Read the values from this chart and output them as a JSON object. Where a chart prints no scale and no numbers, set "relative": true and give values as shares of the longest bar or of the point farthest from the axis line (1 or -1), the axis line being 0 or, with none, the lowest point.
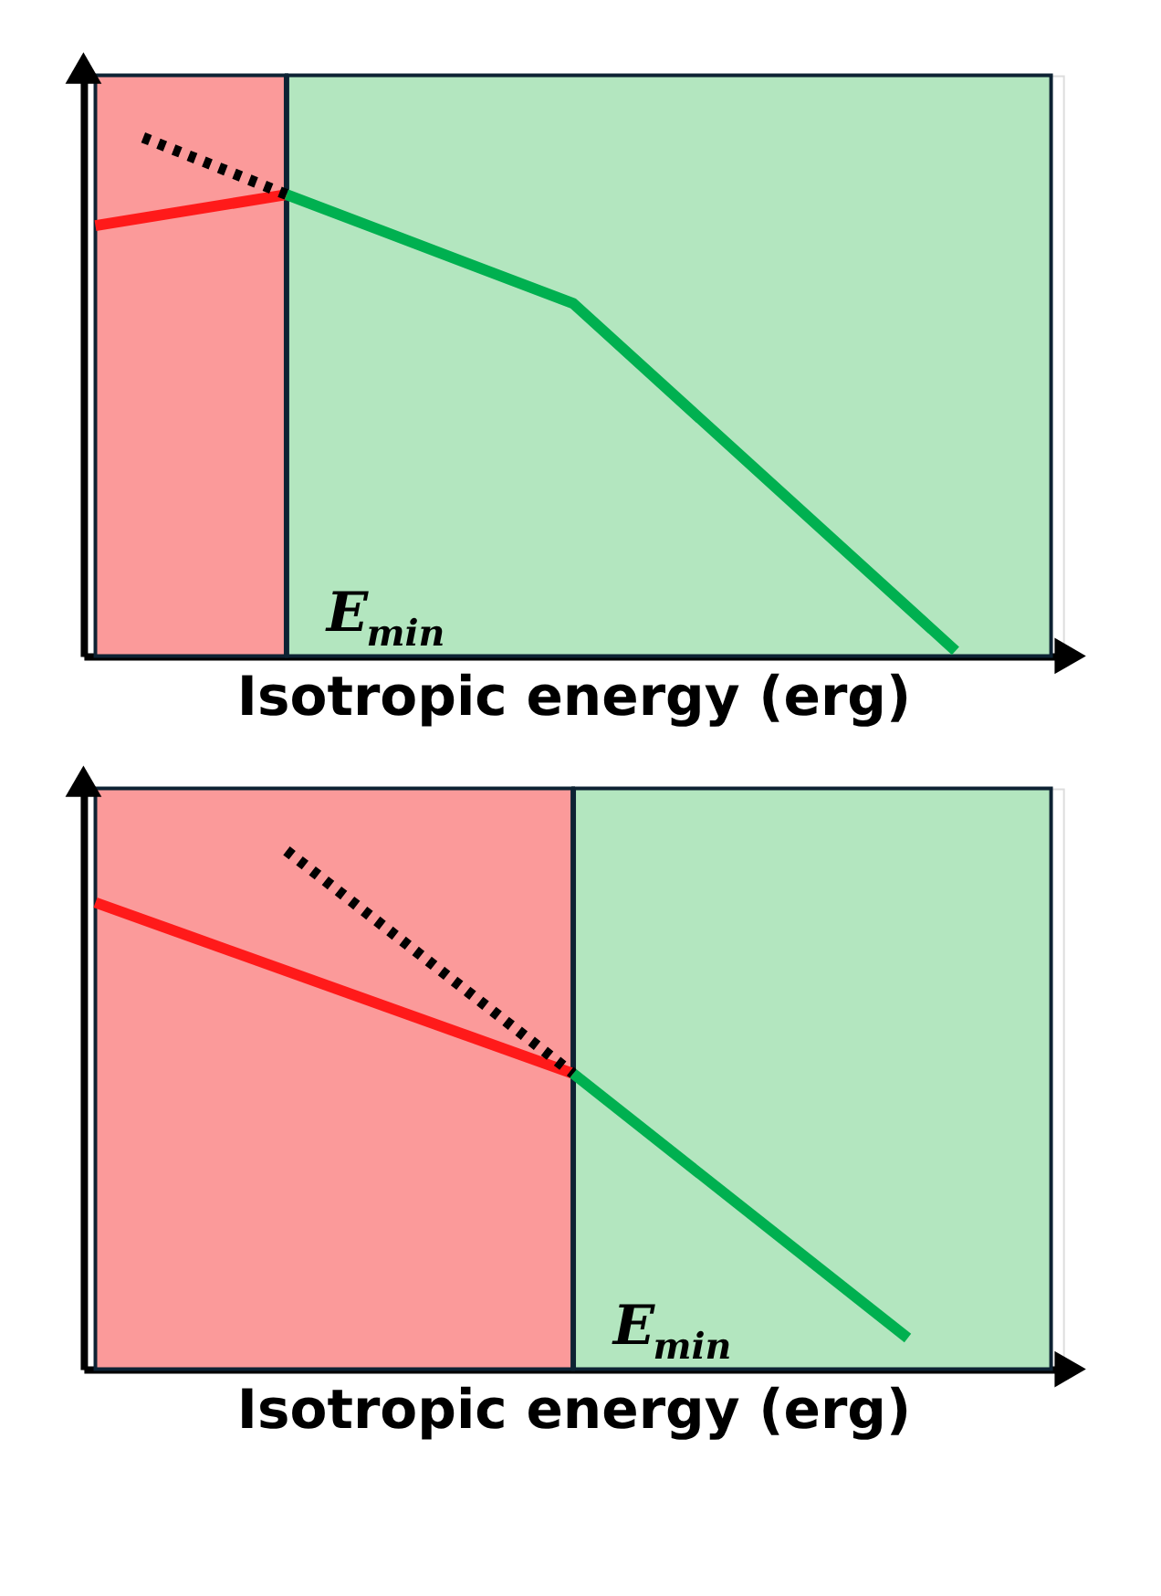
{
  "chart_data": [
    {
      "type": "line",
      "relative": true,
      "xlabel": "Isotropic energy (erg)",
      "marker": "none",
      "annotations": [
        "E$_{min}$"
      ],
      "categories": [
        null,
        null,
        null,
        null,
        null,
        null,
        null,
        null,
        null,
        null,
        null,
        null,
        null,
        null,
        null,
        null,
        null,
        null,
        null,
        null,
        null,
        null,
        null,
        null,
        null,
        null,
        null,
        null,
        null,
        null,
        null,
        null,
        null,
        null,
        null,
        null,
        null,
        null,
        null,
        null,
        null
      ],
      "series": [
        {
          "color": "#ff1a1a",
          "line_style": "solid",
          "values": [
            0.83,
            null,
            null,
            null,
            null,
            null,
            null,
            null,
            0.89,
            null,
            null,
            null,
            null,
            null,
            null,
            null,
            null,
            null,
            null,
            null,
            null,
            null,
            null,
            null,
            null,
            null,
            null,
            null,
            null,
            null,
            null,
            null,
            null,
            null,
            null,
            null,
            null,
            null,
            null,
            null,
            null
          ]
        },
        {
          "color": "#000000",
          "line_style": "dotted",
          "values": [
            null,
            null,
            1.0,
            null,
            null,
            null,
            null,
            null,
            0.89,
            null,
            null,
            null,
            null,
            null,
            null,
            null,
            null,
            null,
            null,
            null,
            null,
            null,
            null,
            null,
            null,
            null,
            null,
            null,
            null,
            null,
            null,
            null,
            null,
            null,
            null,
            null,
            null,
            null,
            null,
            null,
            null
          ]
        },
        {
          "color": "#00b050",
          "line_style": "solid",
          "values": [
            null,
            null,
            null,
            null,
            null,
            null,
            null,
            null,
            0.89,
            null,
            null,
            null,
            null,
            null,
            null,
            null,
            null,
            null,
            null,
            null,
            0.68,
            null,
            null,
            null,
            null,
            null,
            null,
            null,
            null,
            null,
            null,
            null,
            null,
            null,
            null,
            null,
            0.01,
            null,
            null,
            null,
            null
          ]
        }
      ]
    },
    {
      "type": "line",
      "relative": true,
      "xlabel": "Isotropic energy (erg)",
      "marker": "none",
      "annotations": [
        "E$_{min}$"
      ],
      "categories": [
        null,
        null,
        null,
        null,
        null,
        null,
        null,
        null,
        null,
        null,
        null,
        null,
        null,
        null,
        null,
        null,
        null,
        null,
        null,
        null,
        null,
        null,
        null,
        null,
        null,
        null,
        null,
        null,
        null,
        null,
        null,
        null,
        null,
        null,
        null,
        null,
        null,
        null,
        null,
        null,
        null
      ],
      "series": [
        {
          "color": "#ff1a1a",
          "line_style": "solid",
          "values": [
            0.9,
            null,
            null,
            null,
            null,
            null,
            null,
            null,
            null,
            null,
            null,
            null,
            null,
            null,
            null,
            null,
            null,
            null,
            null,
            null,
            0.57,
            null,
            null,
            null,
            null,
            null,
            null,
            null,
            null,
            null,
            null,
            null,
            null,
            null,
            null,
            null,
            null,
            null,
            null,
            null,
            null
          ]
        },
        {
          "color": "#000000",
          "line_style": "dotted",
          "values": [
            null,
            null,
            null,
            null,
            null,
            null,
            null,
            null,
            1.0,
            null,
            null,
            null,
            null,
            null,
            null,
            null,
            null,
            null,
            null,
            null,
            0.57,
            null,
            null,
            null,
            null,
            null,
            null,
            null,
            null,
            null,
            null,
            null,
            null,
            null,
            null,
            null,
            null,
            null,
            null,
            null,
            null
          ]
        },
        {
          "color": "#00b050",
          "line_style": "solid",
          "values": [
            null,
            null,
            null,
            null,
            null,
            null,
            null,
            null,
            null,
            null,
            null,
            null,
            null,
            null,
            null,
            null,
            null,
            null,
            null,
            null,
            0.57,
            null,
            null,
            null,
            null,
            null,
            null,
            null,
            null,
            null,
            null,
            null,
            null,
            null,
            0.06,
            null,
            null,
            null,
            null,
            null,
            null
          ]
        }
      ]
    }
  ]
}
